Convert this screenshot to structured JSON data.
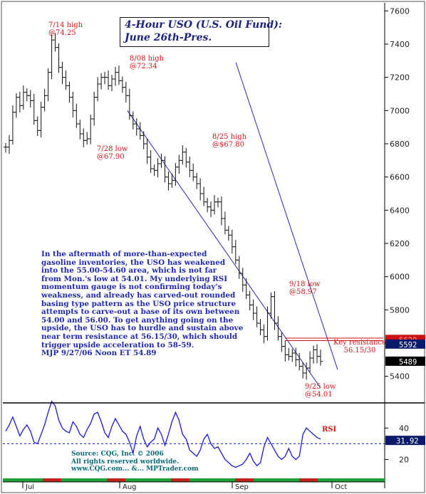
{
  "chart_data": [
    {
      "type": "ohlc",
      "title": "4-Hour USO (U.S. Oil Fund):",
      "subtitle": "June 26th-Pres.",
      "x_labels": [
        "Jul",
        "Aug",
        "Sep",
        "Oct"
      ],
      "y_ticks": [
        5400,
        5600,
        5800,
        6000,
        6200,
        6400,
        6600,
        6800,
        7000,
        7200,
        7400,
        7600
      ],
      "ylim": [
        5240,
        7640
      ],
      "grid": false,
      "closes": [
        6780,
        6820,
        6990,
        7080,
        7030,
        7110,
        7090,
        7060,
        6940,
        6880,
        7020,
        7090,
        7230,
        7425,
        7380,
        7260,
        7200,
        7150,
        7080,
        7000,
        6920,
        6860,
        6820,
        6830,
        6950,
        7080,
        7160,
        7200,
        7200,
        7150,
        7190,
        7230,
        7180,
        7140,
        7090,
        6970,
        6920,
        6890,
        6850,
        6800,
        6720,
        6650,
        6640,
        6680,
        6700,
        6600,
        6560,
        6580,
        6660,
        6700,
        6750,
        6690,
        6640,
        6600,
        6560,
        6500,
        6450,
        6420,
        6400,
        6450,
        6450,
        6350,
        6280,
        6250,
        6180,
        6100,
        6020,
        5950,
        5890,
        5830,
        5780,
        5720,
        5680,
        5640,
        5780,
        5880,
        5720,
        5640,
        5580,
        5530,
        5520,
        5540,
        5500,
        5460,
        5420,
        5450,
        5510,
        5560,
        5520,
        5490
      ],
      "key_resistance": {
        "values": [
          5615,
          5630
        ],
        "label": "Key resistance",
        "value_label": "56.15/30"
      },
      "price_tags": [
        {
          "value": 5620,
          "text": "5620"
        },
        {
          "value": 5592,
          "text": "5592"
        },
        {
          "value": 5489,
          "text": "5489"
        }
      ],
      "annotations": [
        {
          "text": "7/14 high\n@74.25"
        },
        {
          "text": "8/08 high\n@72.34"
        },
        {
          "text": "7/28 low\n@67.90"
        },
        {
          "text": "8/25 high\n@$67.80"
        },
        {
          "text": "9/18 low\n@58.97"
        },
        {
          "text": "9/25 low\n@54.01"
        }
      ]
    },
    {
      "type": "line",
      "series": [
        {
          "name": "RSI",
          "values": [
            38,
            42,
            47,
            41,
            35,
            39,
            42,
            38,
            31,
            30,
            36,
            42,
            50,
            57,
            54,
            45,
            40,
            38,
            37,
            44,
            41,
            36,
            34,
            39,
            43,
            49,
            50,
            44,
            37,
            34,
            41,
            46,
            42,
            38,
            36,
            31,
            24,
            35,
            41,
            33,
            28,
            31,
            33,
            40,
            36,
            29,
            36,
            44,
            50,
            45,
            36,
            33,
            26,
            24,
            22,
            26,
            33,
            36,
            30,
            27,
            28,
            24,
            20,
            18,
            16,
            15,
            16,
            17,
            20,
            24,
            19,
            16,
            18,
            28,
            34,
            30,
            26,
            22,
            20,
            22,
            27,
            22,
            20,
            22,
            36,
            40,
            38,
            36,
            34,
            33
          ]
        }
      ],
      "y_ticks": [
        20,
        40
      ],
      "ylim": [
        8,
        56
      ],
      "reference_value": 30,
      "value_tag": "31.92"
    }
  ],
  "title_box": {
    "line1": "4-Hour USO (U.S. Oil Fund):",
    "line2": "June 26th-Pres."
  },
  "commentary": "In the aftermath of more-than-expected\ngasoline inventories, the USO has weakened\ninto the 55.00-54.60 area, which is not far\nfrom Mon.'s low at 54.01. My underlying RSI\nmomentum gauge is not confirming today's\nweakness, and already has carved-out rounded\nbasing type pattern as the USO price structure\nattempts to carve-out a base of its own between\n54.00 and 56.00. To get anything going on the\nupside, the USO has to hurdle and sustain above\nnear term resistance at 56.15/30, which should\ntrigger upside acceleration to 58-59.\nMJP  9/27/06 Noon ET 54.89",
  "source": "Source: CQG, Inc. © 2006\nAll rights reserved worldwide.\nwww.CQG.com... &... MPTrader.com",
  "colors": {
    "accent": "#1a237e",
    "annotation": "#d01818",
    "commentary": "#1f2aa8",
    "source": "#0a6a7a",
    "channel": "#2a2ab0",
    "rsi": "#1a1ad0",
    "tag_red": "#cc1111",
    "tag_navy": "#0a1a6a"
  }
}
